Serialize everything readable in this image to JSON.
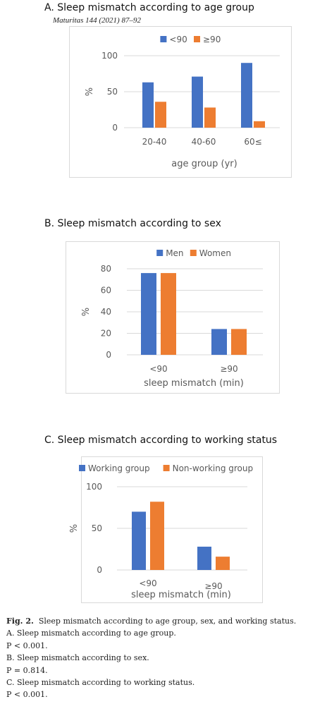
{
  "journal_ref": "Maturitas 144 (2021) 87–92",
  "caption": {
    "label": "Fig. 2.",
    "text": "Sleep mismatch according to age group, sex, and working status.",
    "lines": [
      "A. Sleep mismatch according to age group.",
      "P < 0.001.",
      "B. Sleep mismatch according to sex.",
      "P = 0.814.",
      "C. Sleep mismatch according to working status.",
      "P < 0.001."
    ]
  },
  "colors": {
    "series1": "#4472c4",
    "series2": "#ed7d31",
    "grid": "#d9d9d9",
    "axis_text": "#595959"
  },
  "chart_data": [
    {
      "type": "bar",
      "panel": "A",
      "title": "A.  Sleep mismatch according to age group",
      "categories": [
        "20-40",
        "40-60",
        "60≤"
      ],
      "series": [
        {
          "name": "<90",
          "values": [
            63,
            71,
            90
          ]
        },
        {
          "name": "≥90",
          "values": [
            36,
            28,
            9
          ]
        }
      ],
      "xlabel": "age group (yr)",
      "ylabel": "%",
      "ylim": [
        0,
        100
      ],
      "yticks": [
        0,
        50,
        100
      ],
      "grid": true,
      "legend": "top"
    },
    {
      "type": "bar",
      "panel": "B",
      "title": "B.  Sleep mismatch according to sex",
      "categories": [
        "<90",
        "≥90"
      ],
      "series": [
        {
          "name": "Men",
          "values": [
            76,
            24
          ]
        },
        {
          "name": "Women",
          "values": [
            76,
            24
          ]
        }
      ],
      "xlabel": "sleep mismatch (min)",
      "ylabel": "%",
      "ylim": [
        0,
        80
      ],
      "yticks": [
        0,
        20,
        40,
        60,
        80
      ],
      "grid": true,
      "legend": "top"
    },
    {
      "type": "bar",
      "panel": "C",
      "title": "C.  Sleep mismatch according to working status",
      "categories": [
        "<90",
        "≥90"
      ],
      "series": [
        {
          "name": "Working group",
          "values": [
            70,
            28
          ]
        },
        {
          "name": "Non-working group",
          "values": [
            82,
            16
          ]
        }
      ],
      "xlabel": "sleep mismatch (min)",
      "ylabel": "%",
      "ylim": [
        0,
        100
      ],
      "yticks": [
        0,
        50,
        100
      ],
      "grid": true,
      "legend": "top"
    }
  ]
}
